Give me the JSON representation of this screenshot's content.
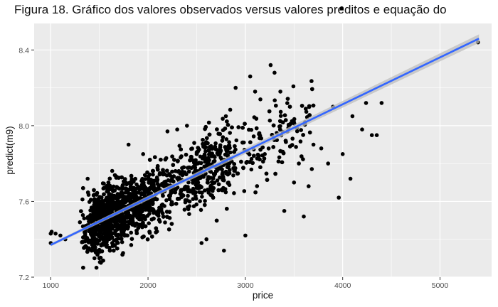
{
  "chart_data": {
    "type": "scatter",
    "title": "Figura 18. Gráfico dos valores observados versus valores preditos e equação do",
    "xlabel": "price",
    "ylabel": "predict(m9)",
    "xlim": [
      830,
      5530
    ],
    "ylim": [
      7.2,
      8.54
    ],
    "x_ticks": [
      1000,
      2000,
      3000,
      4000,
      5000
    ],
    "y_ticks": [
      7.2,
      7.6,
      8.0,
      8.4
    ],
    "y_tick_labels": [
      "7.2",
      "7.6",
      "8.0",
      "8.4"
    ],
    "grid": true,
    "background": "#ebebeb",
    "point_color": "#000000",
    "trend_line": {
      "x": [
        1000,
        5400
      ],
      "y": [
        7.37,
        8.46
      ],
      "color": "#3366ff",
      "band_color": "#bdbdbd"
    },
    "highlighted_points": [
      {
        "x": 1000,
        "y": 7.38
      },
      {
        "x": 1000,
        "y": 7.43
      },
      {
        "x": 1010,
        "y": 7.44
      },
      {
        "x": 1050,
        "y": 7.43
      },
      {
        "x": 1100,
        "y": 7.42
      },
      {
        "x": 1150,
        "y": 7.4
      },
      {
        "x": 1300,
        "y": 7.49
      },
      {
        "x": 1380,
        "y": 7.72
      },
      {
        "x": 1450,
        "y": 7.3
      },
      {
        "x": 1470,
        "y": 7.25
      },
      {
        "x": 1500,
        "y": 7.3
      },
      {
        "x": 1600,
        "y": 7.52
      },
      {
        "x": 1800,
        "y": 7.9
      },
      {
        "x": 1950,
        "y": 7.85
      },
      {
        "x": 2200,
        "y": 7.97
      },
      {
        "x": 2300,
        "y": 7.98
      },
      {
        "x": 2400,
        "y": 8.0
      },
      {
        "x": 2550,
        "y": 7.38
      },
      {
        "x": 2600,
        "y": 7.4
      },
      {
        "x": 2780,
        "y": 7.34
      },
      {
        "x": 2800,
        "y": 8.05
      },
      {
        "x": 2900,
        "y": 8.2
      },
      {
        "x": 3000,
        "y": 7.42
      },
      {
        "x": 3050,
        "y": 8.26
      },
      {
        "x": 3100,
        "y": 8.18
      },
      {
        "x": 3200,
        "y": 7.85
      },
      {
        "x": 3260,
        "y": 8.32
      },
      {
        "x": 3300,
        "y": 8.28
      },
      {
        "x": 3360,
        "y": 8.18
      },
      {
        "x": 3400,
        "y": 7.55
      },
      {
        "x": 3450,
        "y": 8.0
      },
      {
        "x": 3500,
        "y": 7.7
      },
      {
        "x": 3550,
        "y": 7.8
      },
      {
        "x": 3600,
        "y": 7.52
      },
      {
        "x": 3650,
        "y": 7.68
      },
      {
        "x": 3700,
        "y": 7.9
      },
      {
        "x": 3780,
        "y": 7.88
      },
      {
        "x": 3850,
        "y": 7.8
      },
      {
        "x": 3900,
        "y": 8.1
      },
      {
        "x": 3960,
        "y": 7.62
      },
      {
        "x": 3990,
        "y": 8.62
      },
      {
        "x": 4000,
        "y": 7.85
      },
      {
        "x": 4080,
        "y": 7.72
      },
      {
        "x": 4100,
        "y": 8.05
      },
      {
        "x": 4200,
        "y": 7.98
      },
      {
        "x": 4240,
        "y": 8.12
      },
      {
        "x": 4300,
        "y": 7.95
      },
      {
        "x": 4350,
        "y": 7.95
      },
      {
        "x": 4400,
        "y": 8.12
      },
      {
        "x": 5390,
        "y": 8.44
      }
    ]
  }
}
